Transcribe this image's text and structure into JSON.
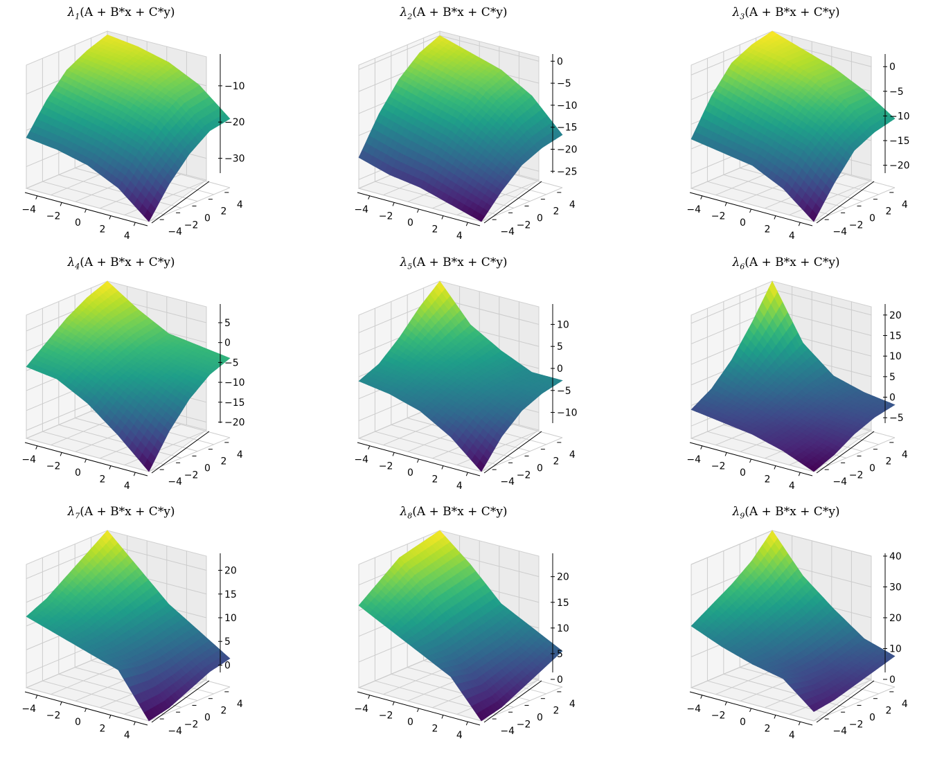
{
  "chart_data": [
    {
      "type": "surface3d",
      "title_sub": "1",
      "title_expr": "(A + B*x + C*y)",
      "x_ticks": [
        -4,
        -2,
        0,
        2,
        4
      ],
      "y_ticks": [
        -4,
        -2,
        0,
        2,
        4
      ],
      "z_ticks": [
        -30,
        -20,
        -10
      ],
      "zlim": [
        -36,
        -2
      ],
      "z_grid": [
        [
          -22,
          -14,
          -8,
          -5,
          -3
        ],
        [
          -23,
          -16,
          -10,
          -6,
          -4
        ],
        [
          -25,
          -18,
          -12,
          -8,
          -6
        ],
        [
          -29,
          -21,
          -15,
          -11,
          -10
        ],
        [
          -36,
          -28,
          -22,
          -18,
          -17
        ]
      ]
    },
    {
      "type": "surface3d",
      "title_sub": "2",
      "title_expr": "(A + B*x + C*y)",
      "x_ticks": [
        -4,
        -2,
        0,
        2,
        4
      ],
      "y_ticks": [
        -4,
        -2,
        0,
        2,
        4
      ],
      "z_ticks": [
        -25,
        -20,
        -15,
        -10,
        -5,
        0
      ],
      "zlim": [
        -27,
        1
      ],
      "z_grid": [
        [
          -20,
          -12,
          -6,
          -2,
          0
        ],
        [
          -22,
          -14,
          -8,
          -4,
          -2
        ],
        [
          -23,
          -16,
          -10,
          -6,
          -4
        ],
        [
          -25,
          -19,
          -14,
          -10,
          -8
        ],
        [
          -27,
          -22,
          -18,
          -16,
          -15
        ]
      ]
    },
    {
      "type": "surface3d",
      "title_sub": "3",
      "title_expr": "(A + B*x + C*y)",
      "x_ticks": [
        -4,
        -2,
        0,
        2,
        4
      ],
      "y_ticks": [
        -4,
        -2,
        0,
        2,
        4
      ],
      "z_ticks": [
        -20,
        -15,
        -10,
        -5,
        0
      ],
      "zlim": [
        -23,
        2
      ],
      "z_grid": [
        [
          -13,
          -6,
          -1,
          1,
          2
        ],
        [
          -14,
          -8,
          -3,
          0,
          0
        ],
        [
          -15,
          -10,
          -5,
          -2,
          -2
        ],
        [
          -18,
          -12,
          -8,
          -5,
          -5
        ],
        [
          -23,
          -17,
          -12,
          -10,
          -9
        ]
      ]
    },
    {
      "type": "surface3d",
      "title_sub": "4",
      "title_expr": "(A + B*x + C*y)",
      "x_ticks": [
        -4,
        -2,
        0,
        2,
        4
      ],
      "y_ticks": [
        -4,
        -2,
        0,
        2,
        4
      ],
      "z_ticks": [
        -20,
        -15,
        -10,
        -5,
        0,
        5
      ],
      "zlim": [
        -22,
        9
      ],
      "z_grid": [
        [
          -4,
          0,
          4,
          7,
          9
        ],
        [
          -5,
          -2,
          1,
          3,
          4
        ],
        [
          -9,
          -5,
          -3,
          -1,
          0
        ],
        [
          -15,
          -9,
          -5,
          -3,
          -1
        ],
        [
          -22,
          -14,
          -8,
          -4,
          -2
        ]
      ]
    },
    {
      "type": "surface3d",
      "title_sub": "5",
      "title_expr": "(A + B*x + C*y)",
      "x_ticks": [
        -4,
        -2,
        0,
        2,
        4
      ],
      "y_ticks": [
        -4,
        -2,
        0,
        2,
        4
      ],
      "z_ticks": [
        -10,
        -5,
        0,
        5,
        10
      ],
      "zlim": [
        -14,
        14
      ],
      "z_grid": [
        [
          -1,
          1,
          5,
          10,
          14
        ],
        [
          -2,
          0,
          2,
          4,
          6
        ],
        [
          -4,
          -2,
          0,
          1,
          2
        ],
        [
          -8,
          -4,
          -2,
          -1,
          -1
        ],
        [
          -14,
          -8,
          -4,
          -2,
          -1
        ]
      ]
    },
    {
      "type": "surface3d",
      "title_sub": "6",
      "title_expr": "(A + B*x + C*y)",
      "x_ticks": [
        -4,
        -2,
        0,
        2,
        4
      ],
      "y_ticks": [
        -4,
        -2,
        0,
        2,
        4
      ],
      "z_ticks": [
        -5,
        0,
        5,
        10,
        15,
        20
      ],
      "zlim": [
        -8,
        22
      ],
      "z_grid": [
        [
          -1,
          2,
          7,
          14,
          22
        ],
        [
          -2,
          0,
          3,
          6,
          9
        ],
        [
          -3,
          -2,
          0,
          2,
          3
        ],
        [
          -5,
          -4,
          -2,
          0,
          1
        ],
        [
          -8,
          -6,
          -3,
          -1,
          0
        ]
      ]
    },
    {
      "type": "surface3d",
      "title_sub": "7",
      "title_expr": "(A + B*x + C*y)",
      "x_ticks": [
        -4,
        -2,
        0,
        2,
        4
      ],
      "y_ticks": [
        -4,
        -2,
        0,
        2,
        4
      ],
      "z_ticks": [
        0,
        5,
        10,
        15,
        20
      ],
      "zlim": [
        -3,
        23
      ],
      "z_grid": [
        [
          12,
          14,
          17,
          20,
          23
        ],
        [
          10,
          11,
          13,
          15,
          17
        ],
        [
          8,
          8,
          9,
          10,
          11
        ],
        [
          6,
          5,
          5,
          6,
          7
        ],
        [
          -3,
          -2,
          0,
          2,
          3
        ]
      ]
    },
    {
      "type": "surface3d",
      "title_sub": "8",
      "title_expr": "(A + B*x + C*y)",
      "x_ticks": [
        -4,
        -2,
        0,
        2,
        4
      ],
      "y_ticks": [
        -4,
        -2,
        0,
        2,
        4
      ],
      "z_ticks": [
        0,
        5,
        10,
        15,
        20
      ],
      "zlim": [
        0,
        24
      ],
      "z_grid": [
        [
          16,
          19,
          22,
          23,
          24
        ],
        [
          13,
          15,
          17,
          18,
          19
        ],
        [
          10,
          10,
          11,
          12,
          13
        ],
        [
          7,
          6,
          7,
          8,
          10
        ],
        [
          0,
          1,
          3,
          5,
          7
        ]
      ]
    },
    {
      "type": "surface3d",
      "title_sub": "9",
      "title_expr": "(A + B*x + C*y)",
      "x_ticks": [
        -4,
        -2,
        0,
        2,
        4
      ],
      "y_ticks": [
        -4,
        -2,
        0,
        2,
        4
      ],
      "z_ticks": [
        0,
        10,
        20,
        30,
        40
      ],
      "zlim": [
        0,
        40
      ],
      "z_grid": [
        [
          20,
          24,
          28,
          33,
          40
        ],
        [
          16,
          18,
          21,
          24,
          28
        ],
        [
          13,
          13,
          15,
          17,
          20
        ],
        [
          11,
          9,
          9,
          11,
          13
        ],
        [
          3,
          4,
          6,
          8,
          10
        ]
      ]
    }
  ]
}
